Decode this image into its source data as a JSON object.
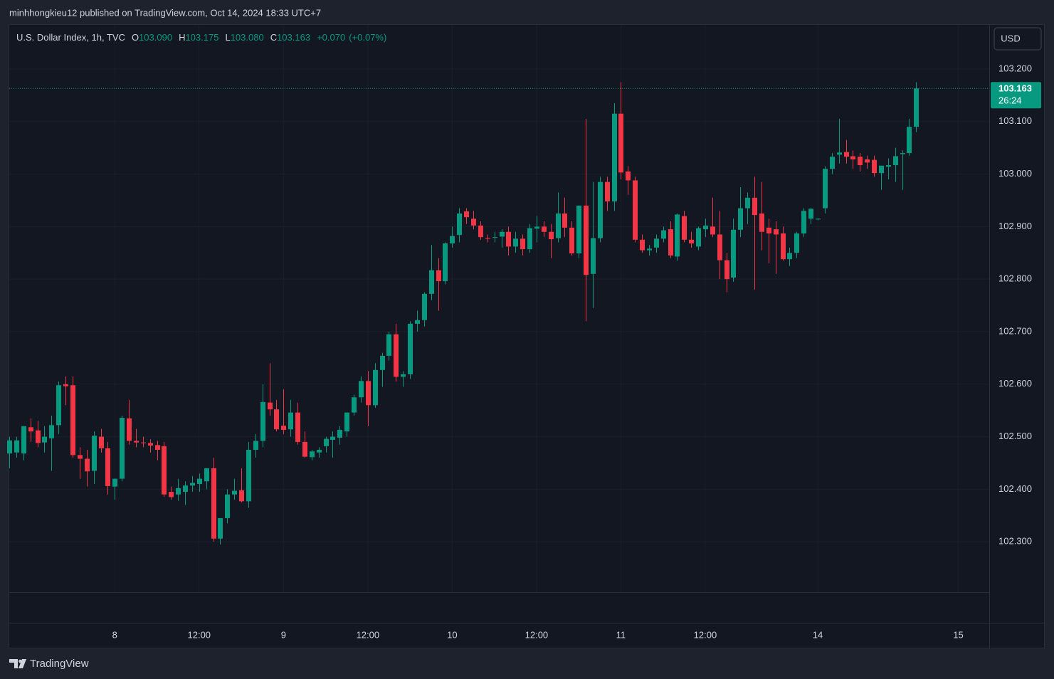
{
  "header": {
    "published": "minhhongkieu12 published on TradingView.com, Oct 14, 2024 18:33 UTC+7"
  },
  "chart_data": {
    "type": "candlestick",
    "title": "U.S. Dollar Index, 1h, TVC",
    "ohlc_legend": [
      {
        "key": "O",
        "value": "103.090"
      },
      {
        "key": "H",
        "value": "103.175"
      },
      {
        "key": "L",
        "value": "103.080"
      },
      {
        "key": "C",
        "value": "103.163"
      }
    ],
    "change": "+0.070",
    "change_percent": "(+0.07%)",
    "currency": "USD",
    "last_price_label": "103.163",
    "countdown": "26:24",
    "up_color": "#089981",
    "down_color": "#f23645",
    "open": [
      102.468,
      102.47,
      102.468,
      102.518,
      102.512,
      102.489,
      102.497,
      102.522,
      102.6,
      102.598,
      102.465,
      102.458,
      102.435,
      102.5,
      102.478,
      102.405,
      102.42,
      102.535,
      102.492,
      102.489,
      102.488,
      102.484,
      102.482,
      102.395,
      102.39,
      102.395,
      102.407,
      102.41,
      102.415,
      102.44,
      102.306,
      102.345,
      102.39,
      102.398,
      102.377,
      102.475,
      102.492,
      102.565,
      102.552,
      102.521,
      102.514,
      102.546,
      102.49,
      102.461,
      102.47,
      102.482,
      102.494,
      102.498,
      102.51,
      102.546,
      102.575,
      102.606,
      102.56,
      102.627,
      102.654,
      102.695,
      102.614,
      102.619,
      102.715,
      102.722,
      102.772,
      102.817,
      102.796,
      102.868,
      102.884,
      102.929,
      102.915,
      102.902,
      102.878,
      102.879,
      102.881,
      102.89,
      102.862,
      102.877,
      102.857,
      102.896,
      102.9,
      102.89,
      102.878,
      102.925,
      102.898,
      102.849,
      102.94,
      102.81,
      102.878,
      102.985,
      102.948,
      103.115,
      103.005,
      102.988,
      102.875,
      102.855,
      102.86,
      102.877,
      102.895,
      102.843,
      102.92,
      102.875,
      102.862,
      102.895,
      102.9,
      102.885,
      102.836,
      102.803,
      102.894,
      102.935,
      102.955,
      102.925,
      102.898,
      102.895,
      102.887,
      102.838,
      102.85,
      102.887,
      102.915,
      102.914,
      102.935,
      103.01,
      103.037,
      103.042,
      103.034,
      103.033,
      103.028,
      103.027,
      103.002,
      103.014,
      103.017,
      103.038,
      103.04,
      103.09
    ],
    "high": [
      102.5,
      102.5,
      102.52,
      102.535,
      102.53,
      102.52,
      102.54,
      102.605,
      102.615,
      102.615,
      102.48,
      102.475,
      102.51,
      102.515,
      102.49,
      102.42,
      102.54,
      102.57,
      102.515,
      102.5,
      102.495,
      102.492,
      102.49,
      102.405,
      102.42,
      102.415,
      102.425,
      102.43,
      102.44,
      102.46,
      102.34,
      102.4,
      102.42,
      102.44,
      102.49,
      102.505,
      102.6,
      102.64,
      102.57,
      102.59,
      102.57,
      102.565,
      102.51,
      102.475,
      102.48,
      102.5,
      102.51,
      102.52,
      102.545,
      102.58,
      102.615,
      102.625,
      102.64,
      102.66,
      102.7,
      102.715,
      102.625,
      102.72,
      102.74,
      102.775,
      102.865,
      102.84,
      102.87,
      102.9,
      102.935,
      102.935,
      102.93,
      102.91,
      102.885,
      102.89,
      102.895,
      102.9,
      102.89,
      102.885,
      102.905,
      102.92,
      102.91,
      102.905,
      102.965,
      102.955,
      102.91,
      102.94,
      103.105,
      102.985,
      102.995,
      102.995,
      103.135,
      103.175,
      103.015,
      102.995,
      102.885,
      102.865,
      102.885,
      102.9,
      102.91,
      102.925,
      102.93,
      102.89,
      102.9,
      102.915,
      102.955,
      102.93,
      102.85,
      102.915,
      102.975,
      102.965,
      102.995,
      102.985,
      102.915,
      102.91,
      102.9,
      102.86,
      102.89,
      102.935,
      102.935,
      102.916,
      103.015,
      103.04,
      103.105,
      103.065,
      103.045,
      103.04,
      103.035,
      103.035,
      103.015,
      103.03,
      103.05,
      103.045,
      103.105,
      103.175
    ],
    "low": [
      102.44,
      102.46,
      102.455,
      102.49,
      102.48,
      102.47,
      102.435,
      102.505,
      102.56,
      102.46,
      102.42,
      102.405,
      102.41,
      102.47,
      102.39,
      102.38,
      102.415,
      102.485,
      102.48,
      102.48,
      102.47,
      102.455,
      102.385,
      102.38,
      102.378,
      102.37,
      102.395,
      102.395,
      102.4,
      102.3,
      102.295,
      102.335,
      102.38,
      102.375,
      102.365,
      102.46,
      102.48,
      102.54,
      102.51,
      102.505,
      102.5,
      102.485,
      102.46,
      102.455,
      102.46,
      102.47,
      102.46,
      102.485,
      102.5,
      102.54,
      102.565,
      102.52,
      102.555,
      102.595,
      102.645,
      102.605,
      102.595,
      102.61,
      102.7,
      102.71,
      102.76,
      102.74,
      102.79,
      102.86,
      102.87,
      102.905,
      102.895,
      102.875,
      102.87,
      102.87,
      102.86,
      102.845,
      102.85,
      102.845,
      102.85,
      102.87,
      102.88,
      102.84,
      102.87,
      102.88,
      102.845,
      102.84,
      102.72,
      102.745,
      102.87,
      102.93,
      102.93,
      102.99,
      102.96,
      102.87,
      102.85,
      102.845,
      102.85,
      102.87,
      102.84,
      102.835,
      102.87,
      102.86,
      102.855,
      102.88,
      102.88,
      102.8,
      102.775,
      102.795,
      102.88,
      102.905,
      102.78,
      102.855,
      102.83,
      102.81,
      102.835,
      102.825,
      102.84,
      102.88,
      102.905,
      102.912,
      102.925,
      103.0,
      103.02,
      103.02,
      103.01,
      103.005,
      103.01,
      102.995,
      102.97,
      102.99,
      102.985,
      102.97,
      103.035,
      103.08
    ],
    "close": [
      102.493,
      102.493,
      102.52,
      102.51,
      102.488,
      102.5,
      102.522,
      102.598,
      102.596,
      102.465,
      102.458,
      102.434,
      102.502,
      102.478,
      102.406,
      102.42,
      102.536,
      102.492,
      102.489,
      102.488,
      102.483,
      102.475,
      102.39,
      102.385,
      102.402,
      102.407,
      102.412,
      102.42,
      102.44,
      102.306,
      102.345,
      102.39,
      102.397,
      102.377,
      102.475,
      102.492,
      102.566,
      102.552,
      102.514,
      102.513,
      102.546,
      102.49,
      102.462,
      102.472,
      102.475,
      102.496,
      102.5,
      102.513,
      102.546,
      102.575,
      102.606,
      102.56,
      102.627,
      102.654,
      102.695,
      102.614,
      102.619,
      102.715,
      102.722,
      102.772,
      102.817,
      102.796,
      102.868,
      102.882,
      102.925,
      102.918,
      102.902,
      102.88,
      102.877,
      102.88,
      102.89,
      102.862,
      102.877,
      102.857,
      102.897,
      102.9,
      102.89,
      102.876,
      102.925,
      102.898,
      102.849,
      102.94,
      102.808,
      102.878,
      102.985,
      102.948,
      103.115,
      103.003,
      102.988,
      102.875,
      102.855,
      102.858,
      102.877,
      102.893,
      102.845,
      102.923,
      102.875,
      102.868,
      102.897,
      102.902,
      102.885,
      102.836,
      102.8,
      102.894,
      102.935,
      102.955,
      102.922,
      102.89,
      102.887,
      102.885,
      102.838,
      102.85,
      102.887,
      102.93,
      102.934,
      102.915,
      103.01,
      103.033,
      103.041,
      103.033,
      103.028,
      103.017,
      103.022,
      103.002,
      103.016,
      103.017,
      103.034,
      103.04,
      103.09,
      103.163
    ],
    "xlim": [
      -0.01,
      139.4
    ],
    "xticks": [
      {
        "value": 15,
        "label": "8"
      },
      {
        "value": 27,
        "label": "12:00"
      },
      {
        "value": 39,
        "label": "9"
      },
      {
        "value": 51,
        "label": "12:00"
      },
      {
        "value": 63,
        "label": "10"
      },
      {
        "value": 75,
        "label": "12:00"
      },
      {
        "value": 87,
        "label": "11"
      },
      {
        "value": 99,
        "label": "12:00"
      },
      {
        "value": 115,
        "label": "14"
      },
      {
        "value": 135,
        "label": "15"
      }
    ],
    "ylim": [
      102.204,
      103.284
    ],
    "yticks": [
      {
        "value": 102.3,
        "label": "102.300"
      },
      {
        "value": 102.4,
        "label": "102.400"
      },
      {
        "value": 102.5,
        "label": "102.500"
      },
      {
        "value": 102.6,
        "label": "102.600"
      },
      {
        "value": 102.7,
        "label": "102.700"
      },
      {
        "value": 102.8,
        "label": "102.800"
      },
      {
        "value": 102.9,
        "label": "102.900"
      },
      {
        "value": 103.0,
        "label": "103.000"
      },
      {
        "value": 103.1,
        "label": "103.100"
      },
      {
        "value": 103.2,
        "label": "103.200"
      }
    ],
    "grid": true
  },
  "footer": {
    "brand": "TradingView"
  }
}
